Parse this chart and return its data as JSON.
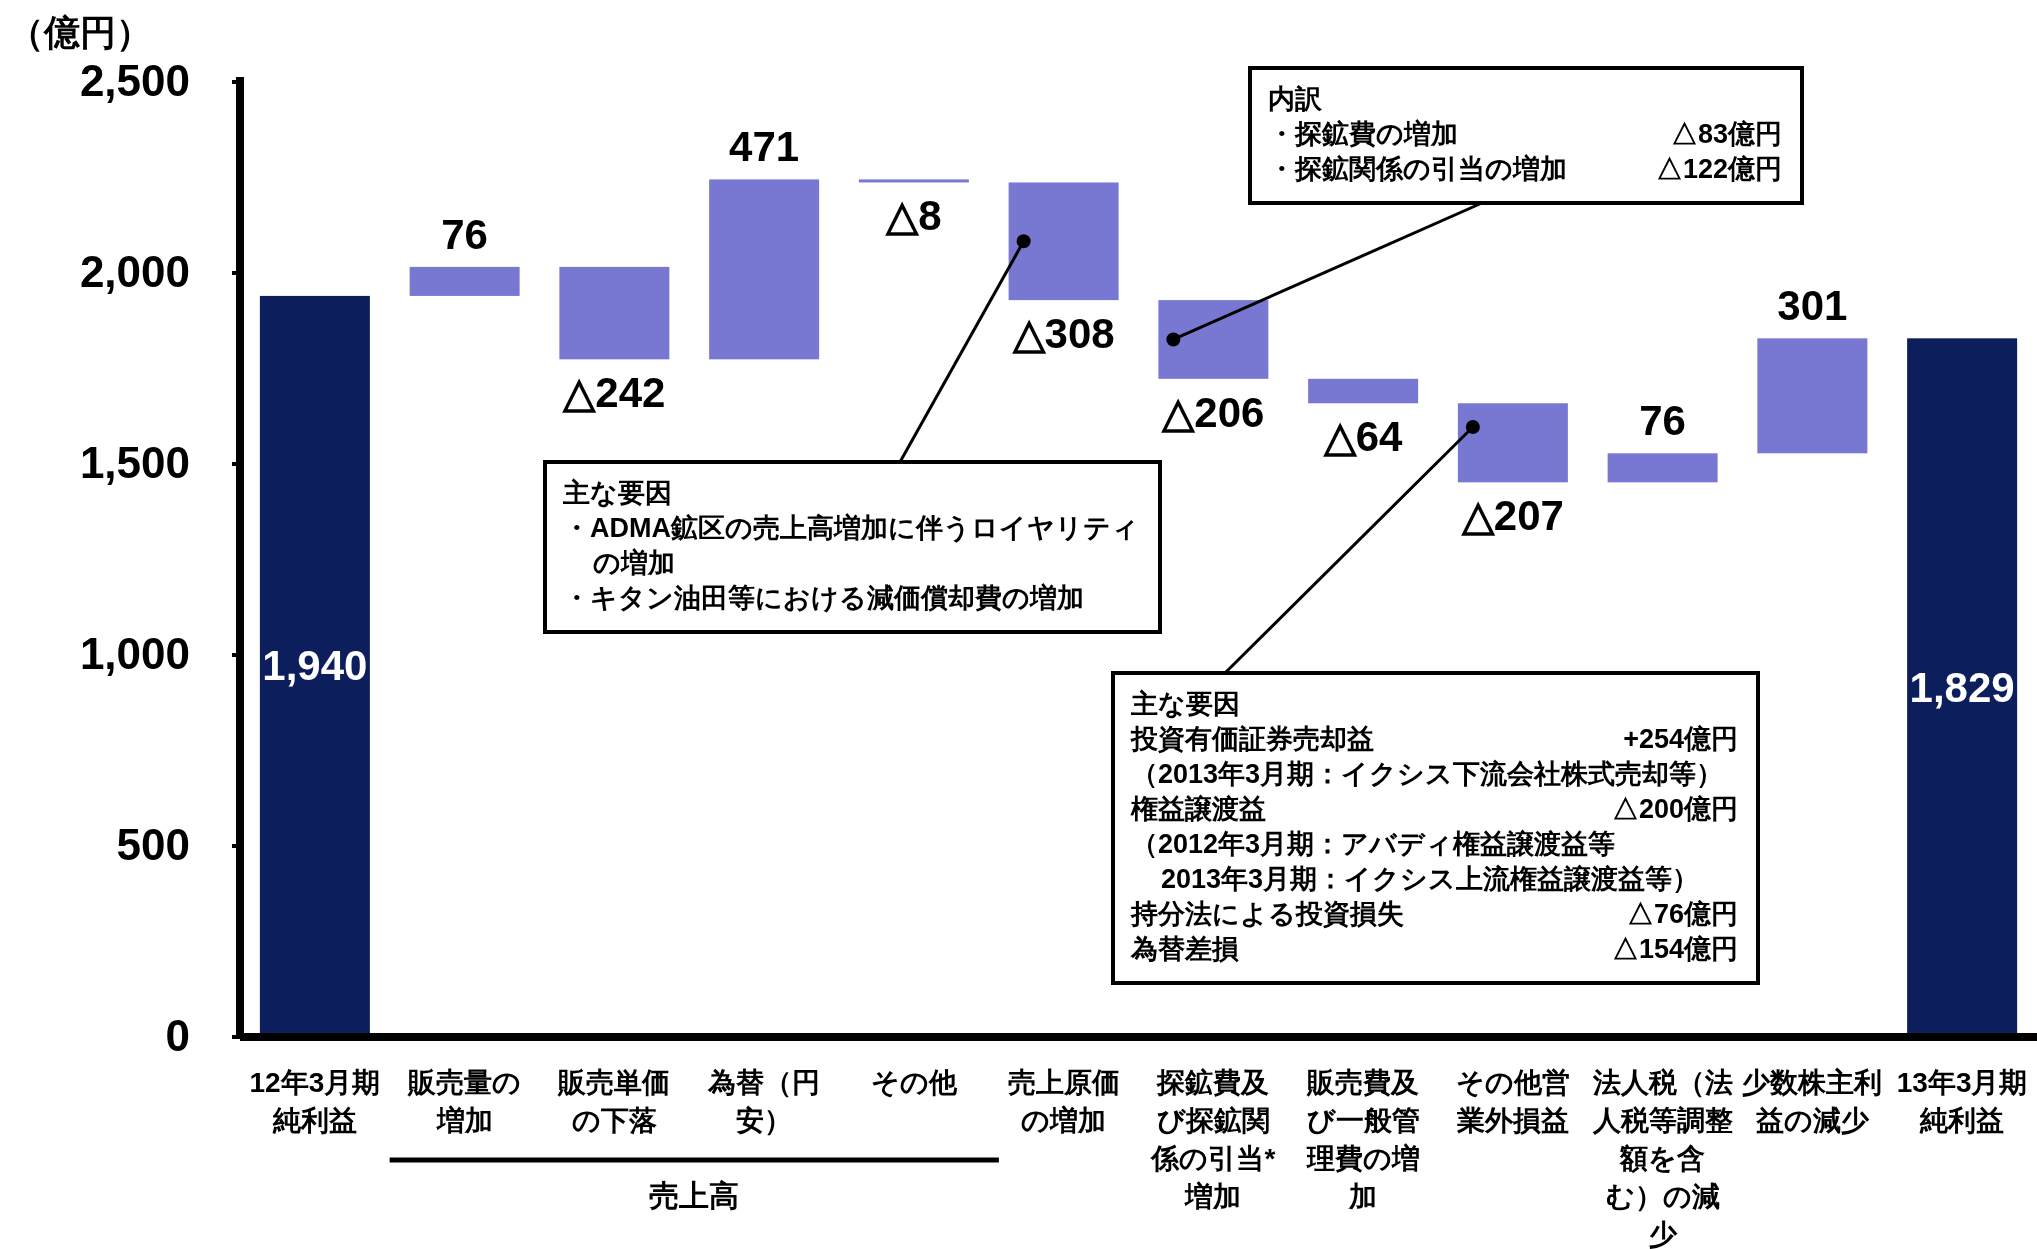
{
  "chart_data": {
    "type": "bar",
    "ylabel": "（億円）",
    "categories": [
      "12年3月期純利益",
      "販売量の増加",
      "販売単価の下落",
      "為替（円安）",
      "その他",
      "売上原価の増加",
      "探鉱費及び探鉱関係の引当*増加",
      "販売費及び一般管理費の増加",
      "その他営業外損益",
      "法人税（法人税等調整額を含む）の減少",
      "少数株主利益の減少",
      "13年3月期純利益"
    ],
    "values": [
      1940,
      76,
      -242,
      471,
      -8,
      -308,
      -206,
      -64,
      -207,
      76,
      301,
      1829
    ],
    "base": [
      0,
      1940,
      2016,
      1774,
      2245,
      2237,
      1929,
      1723,
      1659,
      1452,
      1528,
      0
    ],
    "colors": [
      "#0c1e5b",
      "#7878d2",
      "#7878d2",
      "#7878d2",
      "#7878d2",
      "#7878d2",
      "#7878d2",
      "#7878d2",
      "#7878d2",
      "#7878d2",
      "#7878d2",
      "#0c1e5b"
    ],
    "value_labels": [
      "1,940",
      "76",
      "△242",
      "471",
      "△8",
      "△308",
      "△206",
      "△64",
      "△207",
      "76",
      "301",
      "1,829"
    ],
    "ylim": [
      0,
      2500
    ],
    "yticks": [
      0,
      500,
      {
        "value": 1000,
        "label": "1,000"
      },
      {
        "value": 1500,
        "label": "1,500"
      },
      {
        "value": 2000,
        "label": "2,000"
      },
      {
        "value": 2500,
        "label": "2,500"
      }
    ],
    "annotations": [
      "主な要因",
      "・ADMA鉱区の売上高増加に伴うロイヤリティ",
      "の増加",
      "・キタン油田等における減価償却費の増加",
      "内訳",
      "・探鉱費の増加",
      "△83億円",
      "・探鉱関係の引当の増加",
      "△122億円",
      "主な要因",
      "投資有価証券売却益",
      "+254億円",
      "（2013年3月期：イクシス下流会社株式売却等）",
      "権益譲渡益",
      "△200億円",
      "（2012年3月期：アバディ権益譲渡益等",
      "2013年3月期：イクシス上流権益譲渡益等）",
      "持分法による投資損失",
      "△76億円",
      "為替差損",
      "△154億円",
      "売上高"
    ]
  }
}
